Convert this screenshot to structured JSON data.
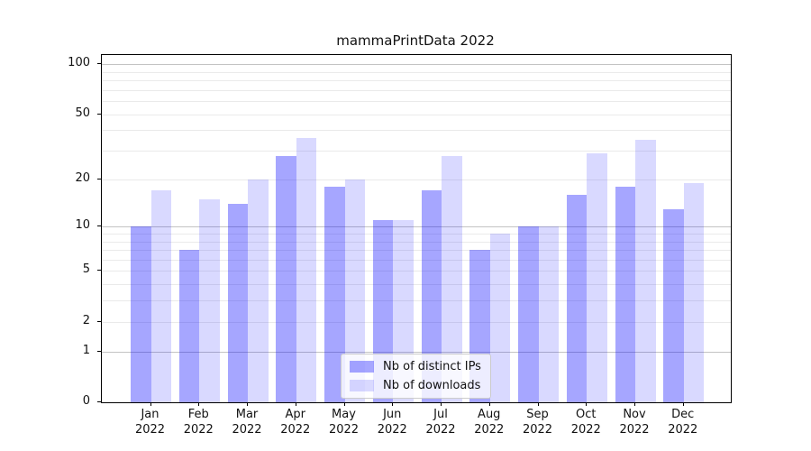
{
  "window": {
    "background": "#ffffff"
  },
  "chart_data": {
    "type": "bar",
    "title": "mammaPrintData 2022",
    "categories": [
      "Jan",
      "Feb",
      "Mar",
      "Apr",
      "May",
      "Jun",
      "Jul",
      "Aug",
      "Sep",
      "Oct",
      "Nov",
      "Dec"
    ],
    "category_year": "2022",
    "series": [
      {
        "name": "Nb of distinct IPs",
        "color": "rgba(0,0,255,0.35)",
        "values": [
          10,
          7,
          14,
          28,
          18,
          11,
          17,
          7,
          10,
          16,
          18,
          13
        ]
      },
      {
        "name": "Nb of downloads",
        "color": "rgba(0,0,255,0.15)",
        "values": [
          17,
          15,
          20,
          36,
          20,
          11,
          28,
          9,
          10,
          29,
          35,
          19
        ]
      }
    ],
    "yscale": "log1p",
    "ylim": [
      0,
      114
    ],
    "ytick_values": [
      0,
      1,
      2,
      5,
      10,
      20,
      50,
      100
    ],
    "ytick_labels": [
      "0",
      "1",
      "2",
      "5",
      "10",
      "20",
      "50",
      "100"
    ],
    "major_grid_values": [
      1,
      10,
      100
    ],
    "minor_grid_values": [
      2,
      3,
      4,
      5,
      6,
      7,
      8,
      9,
      20,
      30,
      40,
      50,
      60,
      70,
      80,
      90
    ],
    "grid": true,
    "xlabel": "",
    "ylabel": "",
    "legend_position": "bottom-center"
  }
}
